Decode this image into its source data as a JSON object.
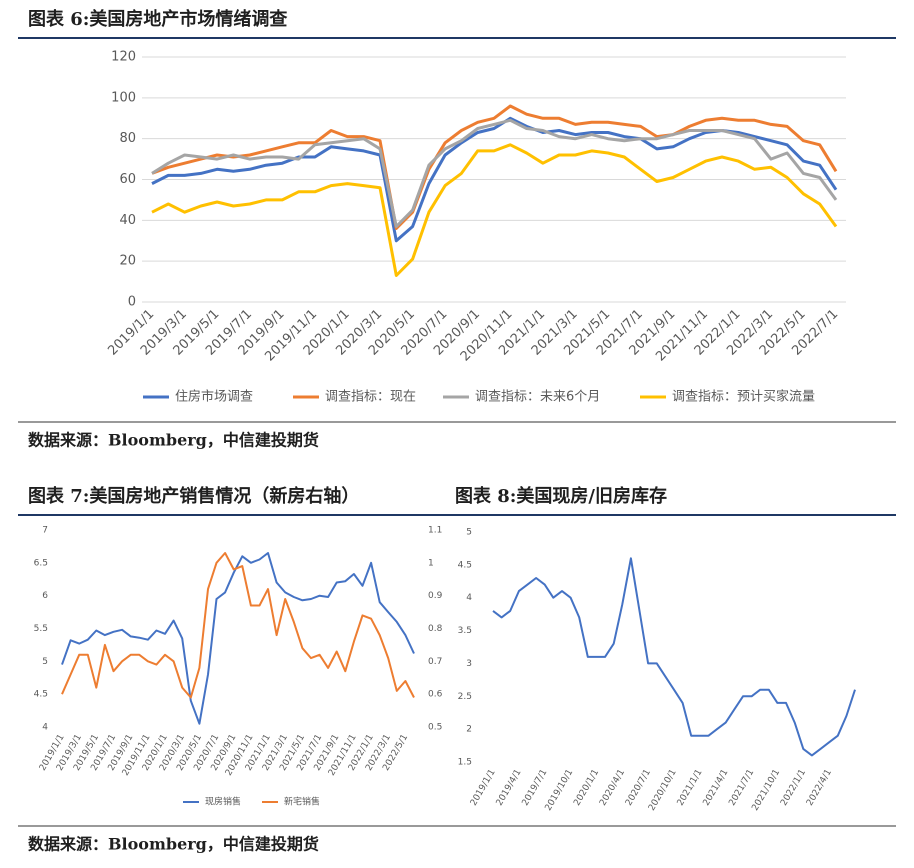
{
  "sources": [
    "数据来源：Bloomberg，中信建投期货",
    "数据来源：Bloomberg，中信建投期货"
  ],
  "chart_data": [
    {
      "type": "line",
      "title": "图表 6:美国房地产市场情绪调查",
      "categories": [
        "2019/1/1",
        null,
        "2019/3/1",
        null,
        "2019/5/1",
        null,
        "2019/7/1",
        null,
        "2019/9/1",
        null,
        "2019/11/1",
        null,
        "2020/1/1",
        null,
        "2020/3/1",
        null,
        "2020/5/1",
        null,
        "2020/7/1",
        null,
        "2020/9/1",
        null,
        "2020/11/1",
        null,
        "2021/1/1",
        null,
        "2021/3/1",
        null,
        "2021/5/1",
        null,
        "2021/7/1",
        null,
        "2021/9/1",
        null,
        "2021/11/1",
        null,
        "2022/1/1",
        null,
        "2022/3/1",
        null,
        "2022/5/1",
        null,
        "2022/7/1"
      ],
      "series": [
        {
          "name": "住房市场调查",
          "color": "#4472c4",
          "values": [
            58,
            62,
            62,
            63,
            65,
            64,
            65,
            67,
            68,
            71,
            71,
            76,
            75,
            74,
            72,
            30,
            37,
            58,
            72,
            78,
            83,
            85,
            90,
            86,
            83,
            84,
            82,
            83,
            83,
            81,
            80,
            75,
            76,
            80,
            83,
            84,
            83,
            81,
            79,
            77,
            69,
            67,
            55
          ]
        },
        {
          "name": "调查指标：现在",
          "color": "#ed7d31",
          "values": [
            63,
            66,
            68,
            70,
            72,
            71,
            72,
            74,
            76,
            78,
            78,
            84,
            81,
            81,
            79,
            36,
            44,
            65,
            78,
            84,
            88,
            90,
            96,
            92,
            90,
            90,
            87,
            88,
            88,
            87,
            86,
            81,
            82,
            86,
            89,
            90,
            89,
            89,
            87,
            86,
            79,
            77,
            64
          ]
        },
        {
          "name": "调查指标：未来6个月",
          "color": "#a5a5a5",
          "values": [
            63,
            68,
            72,
            71,
            70,
            72,
            70,
            71,
            71,
            70,
            77,
            78,
            79,
            80,
            75,
            37,
            45,
            67,
            75,
            79,
            85,
            87,
            89,
            85,
            84,
            81,
            80,
            82,
            80,
            79,
            80,
            80,
            82,
            84,
            84,
            84,
            82,
            80,
            70,
            73,
            63,
            61,
            50
          ]
        },
        {
          "name": "调查指标：预计买家流量",
          "color": "#ffc000",
          "values": [
            44,
            48,
            44,
            47,
            49,
            47,
            48,
            50,
            50,
            54,
            54,
            57,
            58,
            57,
            56,
            13,
            21,
            44,
            57,
            63,
            74,
            74,
            77,
            73,
            68,
            72,
            72,
            74,
            73,
            71,
            65,
            59,
            61,
            65,
            69,
            71,
            69,
            65,
            66,
            61,
            53,
            48,
            37
          ]
        }
      ],
      "ylim": [
        0,
        120
      ],
      "yticks": [
        0,
        20,
        40,
        60,
        80,
        100,
        120
      ],
      "grid": true
    },
    {
      "type": "line",
      "title": "图表 7:美国房地产销售情况（新房右轴）",
      "categories": [
        "2019/1/1",
        null,
        "2019/3/1",
        null,
        "2019/5/1",
        null,
        "2019/7/1",
        null,
        "2019/9/1",
        null,
        "2019/11/1",
        null,
        "2020/1/1",
        null,
        "2020/3/1",
        null,
        "2020/5/1",
        null,
        "2020/7/1",
        null,
        "2020/9/1",
        null,
        "2020/11/1",
        null,
        "2021/1/1",
        null,
        "2021/3/1",
        null,
        "2021/5/1",
        null,
        "2021/7/1",
        null,
        "2021/9/1",
        null,
        "2021/11/1",
        null,
        "2022/1/1",
        null,
        "2022/3/1",
        null,
        "2022/5/1",
        null
      ],
      "series": [
        {
          "name": "现房销售",
          "color": "#4472c4",
          "values": [
            4.95,
            5.32,
            5.27,
            5.33,
            5.47,
            5.4,
            5.45,
            5.48,
            5.38,
            5.36,
            5.33,
            5.47,
            5.42,
            5.62,
            5.35,
            4.4,
            4.05,
            4.8,
            5.95,
            6.05,
            6.35,
            6.6,
            6.5,
            6.55,
            6.65,
            6.2,
            6.05,
            5.98,
            5.93,
            5.95,
            6.0,
            5.98,
            6.2,
            6.22,
            6.33,
            6.15,
            6.5,
            5.9,
            5.75,
            5.6,
            5.4,
            5.12
          ]
        },
        {
          "name": "新宅销售",
          "color": "#ed7d31",
          "axis": "y2",
          "values": [
            0.6,
            0.66,
            0.72,
            0.72,
            0.62,
            0.75,
            0.67,
            0.7,
            0.72,
            0.72,
            0.7,
            0.69,
            0.72,
            0.7,
            0.62,
            0.59,
            0.68,
            0.92,
            1.0,
            1.03,
            0.98,
            0.99,
            0.87,
            0.87,
            0.92,
            0.78,
            0.89,
            0.82,
            0.74,
            0.71,
            0.72,
            0.68,
            0.73,
            0.67,
            0.76,
            0.84,
            0.83,
            0.78,
            0.71,
            0.61,
            0.64,
            0.59
          ]
        }
      ],
      "ylim": [
        4,
        7
      ],
      "yticks": [
        4,
        4.5,
        5,
        5.5,
        6,
        6.5,
        7
      ],
      "y2lim": [
        0.5,
        1.1
      ],
      "y2ticks": [
        0.5,
        0.6,
        0.7,
        0.8,
        0.9,
        1,
        1.1
      ],
      "grid": false
    },
    {
      "type": "line",
      "title": "图表 8:美国现房/旧房库存",
      "categories": [
        "2019/1/1",
        null,
        null,
        "2019/4/1",
        null,
        null,
        "2019/7/1",
        null,
        null,
        "2019/10/1",
        null,
        null,
        "2020/1/1",
        null,
        null,
        "2020/4/1",
        null,
        null,
        "2020/7/1",
        null,
        null,
        "2020/10/1",
        null,
        null,
        "2021/1/1",
        null,
        null,
        "2021/4/1",
        null,
        null,
        "2021/7/1",
        null,
        null,
        "2021/10/1",
        null,
        null,
        "2022/1/1",
        null,
        null,
        "2022/4/1",
        null,
        null,
        null
      ],
      "color": "#4472c4",
      "values": [
        3.8,
        3.7,
        3.8,
        4.1,
        4.2,
        4.3,
        4.2,
        4.0,
        4.1,
        4.0,
        3.7,
        3.1,
        3.1,
        3.1,
        3.3,
        3.9,
        4.6,
        3.8,
        3.0,
        3.0,
        2.8,
        2.6,
        2.4,
        1.9,
        1.9,
        1.9,
        2.0,
        2.1,
        2.3,
        2.5,
        2.5,
        2.6,
        2.6,
        2.4,
        2.4,
        2.1,
        1.7,
        1.6,
        1.7,
        1.8,
        1.9,
        2.2,
        2.6
      ],
      "ylim": [
        1.5,
        5
      ],
      "yticks": [
        1.5,
        2,
        2.5,
        3,
        3.5,
        4,
        4.5,
        5
      ],
      "grid": false
    }
  ]
}
